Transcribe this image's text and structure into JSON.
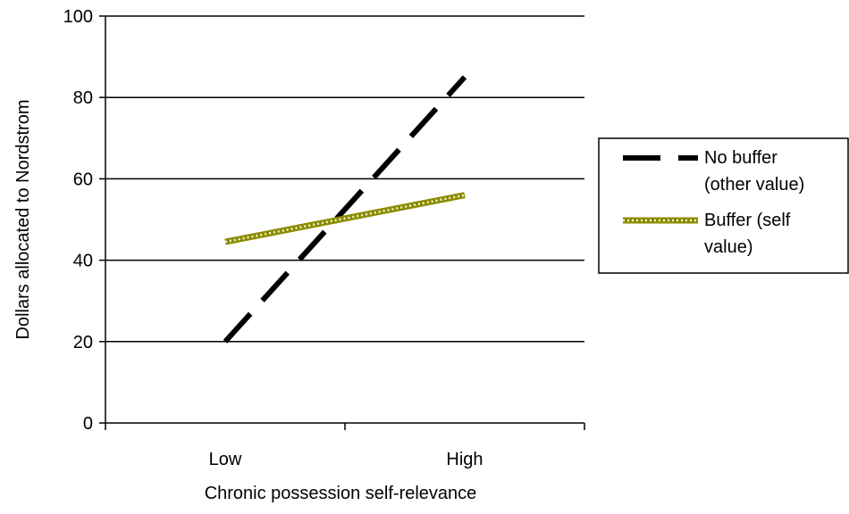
{
  "chart_data": {
    "type": "line",
    "categories": [
      "Low",
      "High"
    ],
    "series": [
      {
        "name": "No buffer (other value)",
        "name_lines": [
          "No buffer",
          "(other value)"
        ],
        "values": [
          20,
          85
        ],
        "color": "#000000",
        "style": "dashed"
      },
      {
        "name": "Buffer (self value)",
        "name_lines": [
          "Buffer (self",
          "value)"
        ],
        "values": [
          44.5,
          56
        ],
        "color": "#8B8B00",
        "style": "dotted-band"
      }
    ],
    "xlabel": "Chronic possession self-relevance",
    "ylabel": "Dollars allocated to Nordstrom",
    "ylim": [
      0,
      100
    ],
    "yticks": [
      0,
      20,
      40,
      60,
      80,
      100
    ],
    "grid": true,
    "legend_position": "right"
  }
}
